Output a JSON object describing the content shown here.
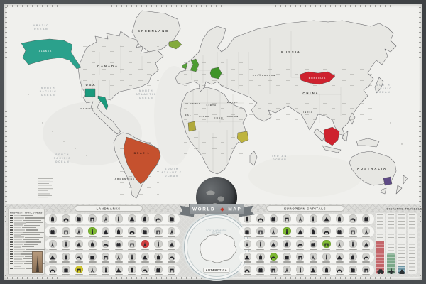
{
  "poster": {
    "banner": {
      "word1": "WORLD",
      "word2": "MAP"
    }
  },
  "map": {
    "labels": {
      "arctic_ocean": [
        "ARCTIC",
        "OCEAN"
      ],
      "north_pacific": [
        "NORTH",
        "PACIFIC",
        "OCEAN"
      ],
      "north_atlantic": [
        "NORTH",
        "ATLANTIC",
        "OCEAN"
      ],
      "south_pacific": [
        "SOUTH",
        "PACIFIC",
        "OCEAN"
      ],
      "south_atlantic": [
        "SOUTH",
        "ATLANTIC",
        "OCEAN"
      ],
      "indian_ocean": [
        "INDIAN",
        "OCEAN"
      ],
      "north_pacific_east": [
        "NORTH",
        "PACIFIC",
        "OCEAN"
      ],
      "greenland": "GREENLAND",
      "canada": "CANADA",
      "usa": "USA",
      "alaska": "ALASKA",
      "mexico": "MEXICO",
      "brazil": "BRAZIL",
      "argentina": "ARGENTINA",
      "russia": "RUSSIA",
      "kazakhstan": "KAZAKHSTAN",
      "mongolia": "MONGOLIA",
      "china": "CHINA",
      "india": "INDIA",
      "australia": "AUSTRALIA",
      "algeria": "ALGERIA",
      "libya": "LIBYA",
      "egypt": "EGYPT",
      "mali": "MALI",
      "niger": "NIGER",
      "chad": "CHAD",
      "sudan": "SUDAN"
    },
    "scratched": {
      "alaska": {
        "name": "Alaska",
        "color": "#2ba18c"
      },
      "colorado": {
        "name": "Colorado",
        "color": "#1a9a7d"
      },
      "florida": {
        "name": "Florida",
        "color": "#1a9a7d"
      },
      "iceland": {
        "name": "Iceland",
        "color": "#83aa3c"
      },
      "ireland": {
        "name": "Ireland",
        "color": "#55a238"
      },
      "uk": {
        "name": "United Kingdom",
        "color": "#4d9c31"
      },
      "germany": {
        "name": "Germany",
        "color": "#3f9428"
      },
      "mongolia": {
        "name": "Mongolia",
        "color": "#ce222e"
      },
      "borneo": {
        "name": "Kalimantan Indonesia",
        "color": "#ce222e"
      },
      "ghana": {
        "name": "Ghana",
        "color": "#b0a93b"
      },
      "kenya": {
        "name": "Kenya",
        "color": "#beb43e"
      },
      "brazil": {
        "name": "Brazil",
        "color": "#c5512e"
      },
      "victoria": {
        "name": "Victoria Australia",
        "color": "#5f4b86"
      }
    }
  },
  "legend": {
    "buildings": {
      "title": "HIGHEST BUILDINGS",
      "row_count": 24
    },
    "landmarks": {
      "title": "LANDMARKS",
      "rows": 5,
      "cols": 10,
      "highlights": [
        {
          "row": 2,
          "col": 4,
          "color": "#7db832"
        },
        {
          "row": 3,
          "col": 8,
          "color": "#d44040"
        },
        {
          "row": 5,
          "col": 3,
          "color": "#d3c92f"
        }
      ]
    },
    "european_capitals": {
      "title": "EUROPEAN CAPITALS",
      "rows": 5,
      "cols": 10,
      "highlights": [
        {
          "row": 2,
          "col": 4,
          "color": "#7db832"
        },
        {
          "row": 3,
          "col": 7,
          "color": "#7db832"
        },
        {
          "row": 4,
          "col": 3,
          "color": "#7db832"
        }
      ]
    },
    "antarctica": {
      "label": "ANTARCTICA",
      "ocean": "SOUTH ATLANTIC OCEAN"
    },
    "distance": {
      "title": "DISTANCE TRAVELLED",
      "columns": [
        {
          "vehicle": "car",
          "color": "#c4666a",
          "fill_pct": 55
        },
        {
          "vehicle": "plane",
          "color": "#7da98a",
          "fill_pct": 34
        },
        {
          "vehicle": "ship",
          "color": "#6f98a6",
          "fill_pct": 13
        }
      ]
    }
  }
}
